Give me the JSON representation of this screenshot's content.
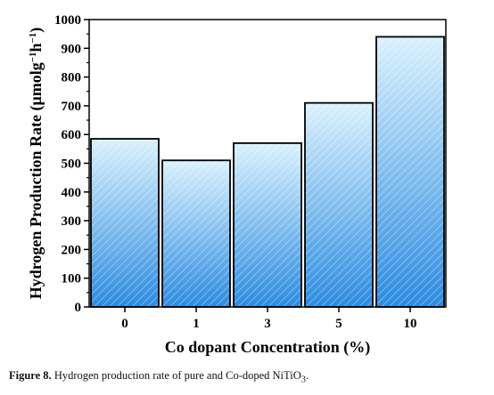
{
  "chart_data": {
    "type": "bar",
    "categories": [
      "0",
      "1",
      "3",
      "5",
      "10"
    ],
    "values": [
      585,
      510,
      570,
      710,
      940
    ],
    "xlabel": "Co dopant Concentration (%)",
    "ylabel": "Hydrogen Production Rate (μmolg",
    "ylabel_sup1": "−1",
    "ylabel_mid": "h",
    "ylabel_sup2": "−1",
    "ylabel_end": ")",
    "ylim": [
      0,
      1000
    ],
    "yticks": [
      0,
      100,
      200,
      300,
      400,
      500,
      600,
      700,
      800,
      900,
      1000
    ],
    "grid": false,
    "bar_fill_top": "#d9f1fd",
    "bar_fill_bottom": "#2c8be0",
    "bar_stroke": "#000000"
  },
  "caption": {
    "label": "Figure 8.",
    "text": "Hydrogen production rate of pure and Co-doped NiTiO",
    "subscript": "3",
    "end": "."
  }
}
